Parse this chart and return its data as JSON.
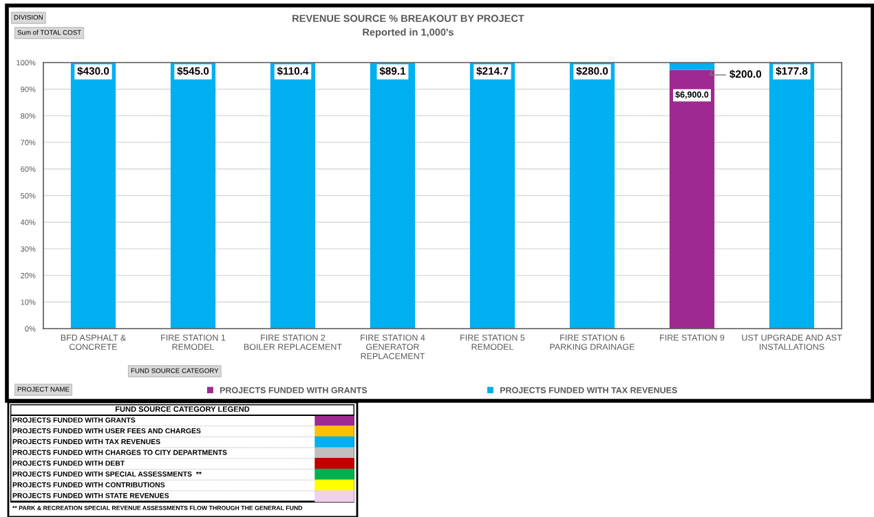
{
  "chart_data": [
    {
      "type": "bar",
      "stacked": true,
      "title": "REVENUE SOURCE % BREAKOUT BY PROJECT",
      "subtitle": "Reported in 1,000's",
      "categories": [
        "BFD ASPHALT & CONCRETE",
        "FIRE STATION 1 REMODEL",
        "FIRE STATION 2 BOILER REPLACEMENT",
        "FIRE STATION 4 GENERATOR REPLACEMENT",
        "FIRE STATION 5 REMODEL",
        "FIRE STATION 6 PARKING DRAINAGE",
        "FIRE STATION 9",
        "UST UPGRADE AND AST INSTALLATIONS"
      ],
      "series": [
        {
          "name": "PROJECTS FUNDED WITH GRANTS",
          "color": "#9e2a91",
          "values": [
            null,
            null,
            null,
            null,
            null,
            null,
            97.2,
            null
          ]
        },
        {
          "name": "PROJECTS FUNDED WITH TAX REVENUES",
          "color": "#00b0f0",
          "values": [
            100,
            100,
            100,
            100,
            100,
            100,
            2.8,
            100
          ]
        }
      ],
      "ylim": [
        0,
        100
      ],
      "yticks": [
        {
          "value": 0,
          "label": "0%"
        },
        {
          "value": 10,
          "label": "10%"
        },
        {
          "value": 20,
          "label": "20%"
        },
        {
          "value": 30,
          "label": "30%"
        },
        {
          "value": 40,
          "label": "40%"
        },
        {
          "value": 50,
          "label": "50%"
        },
        {
          "value": 60,
          "label": "60%"
        },
        {
          "value": 70,
          "label": "70%"
        },
        {
          "value": 80,
          "label": "80%"
        },
        {
          "value": 90,
          "label": "90%"
        },
        {
          "value": 100,
          "label": "100%"
        }
      ],
      "grid": "y",
      "legend": "bottom",
      "annotations": [
        "DIVISION",
        "Sum of TOTAL COST",
        "FUND SOURCE CATEGORY",
        "PROJECT NAME",
        {
          "text": "$430.0",
          "x": "BFD ASPHALT & CONCRETE",
          "y": 100
        },
        {
          "text": "$545.0",
          "x": "FIRE STATION 1 REMODEL",
          "y": 100
        },
        {
          "text": "$110.4",
          "x": "FIRE STATION 2 BOILER REPLACEMENT",
          "y": 100
        },
        {
          "text": "$89.1",
          "x": "FIRE STATION 4 GENERATOR REPLACEMENT",
          "y": 100
        },
        {
          "text": "$214.7",
          "x": "FIRE STATION 5 REMODEL",
          "y": 100
        },
        {
          "text": "$280.0",
          "x": "FIRE STATION 6 PARKING DRAINAGE",
          "y": 100
        },
        {
          "text": "$6,900.0",
          "x": "FIRE STATION 9",
          "y": 97.2
        },
        "$200.0",
        {
          "text": "$177.8",
          "x": "UST UPGRADE AND AST INSTALLATIONS",
          "y": 100
        }
      ]
    },
    {
      "type": "other",
      "title": "FUND SOURCE CATEGORY LEGEND",
      "categories": [
        "PROJECTS FUNDED WITH GRANTS",
        "PROJECTS FUNDED WITH USER FEES AND CHARGES",
        "PROJECTS FUNDED WITH TAX REVENUES",
        "PROJECTS FUNDED WITH CHARGES TO CITY DEPARTMENTS",
        "PROJECTS FUNDED WITH DEBT",
        "PROJECTS FUNDED WITH SPECIAL ASSESSMENTS  **",
        "PROJECTS FUNDED WITH CONTRIBUTIONS",
        "PROJECTS FUNDED WITH STATE REVENUES"
      ],
      "colors": [
        "#9e2a91",
        "#ffc000",
        "#00b0f0",
        "#bfbfbf",
        "#c00000",
        "#00b050",
        "#ffff00",
        "#f0d0ec"
      ],
      "annotations": [
        "** PARK & RECREATION SPECIAL REVENUE ASSESSMENTS FLOW THROUGH THE GENERAL FUND"
      ]
    }
  ]
}
